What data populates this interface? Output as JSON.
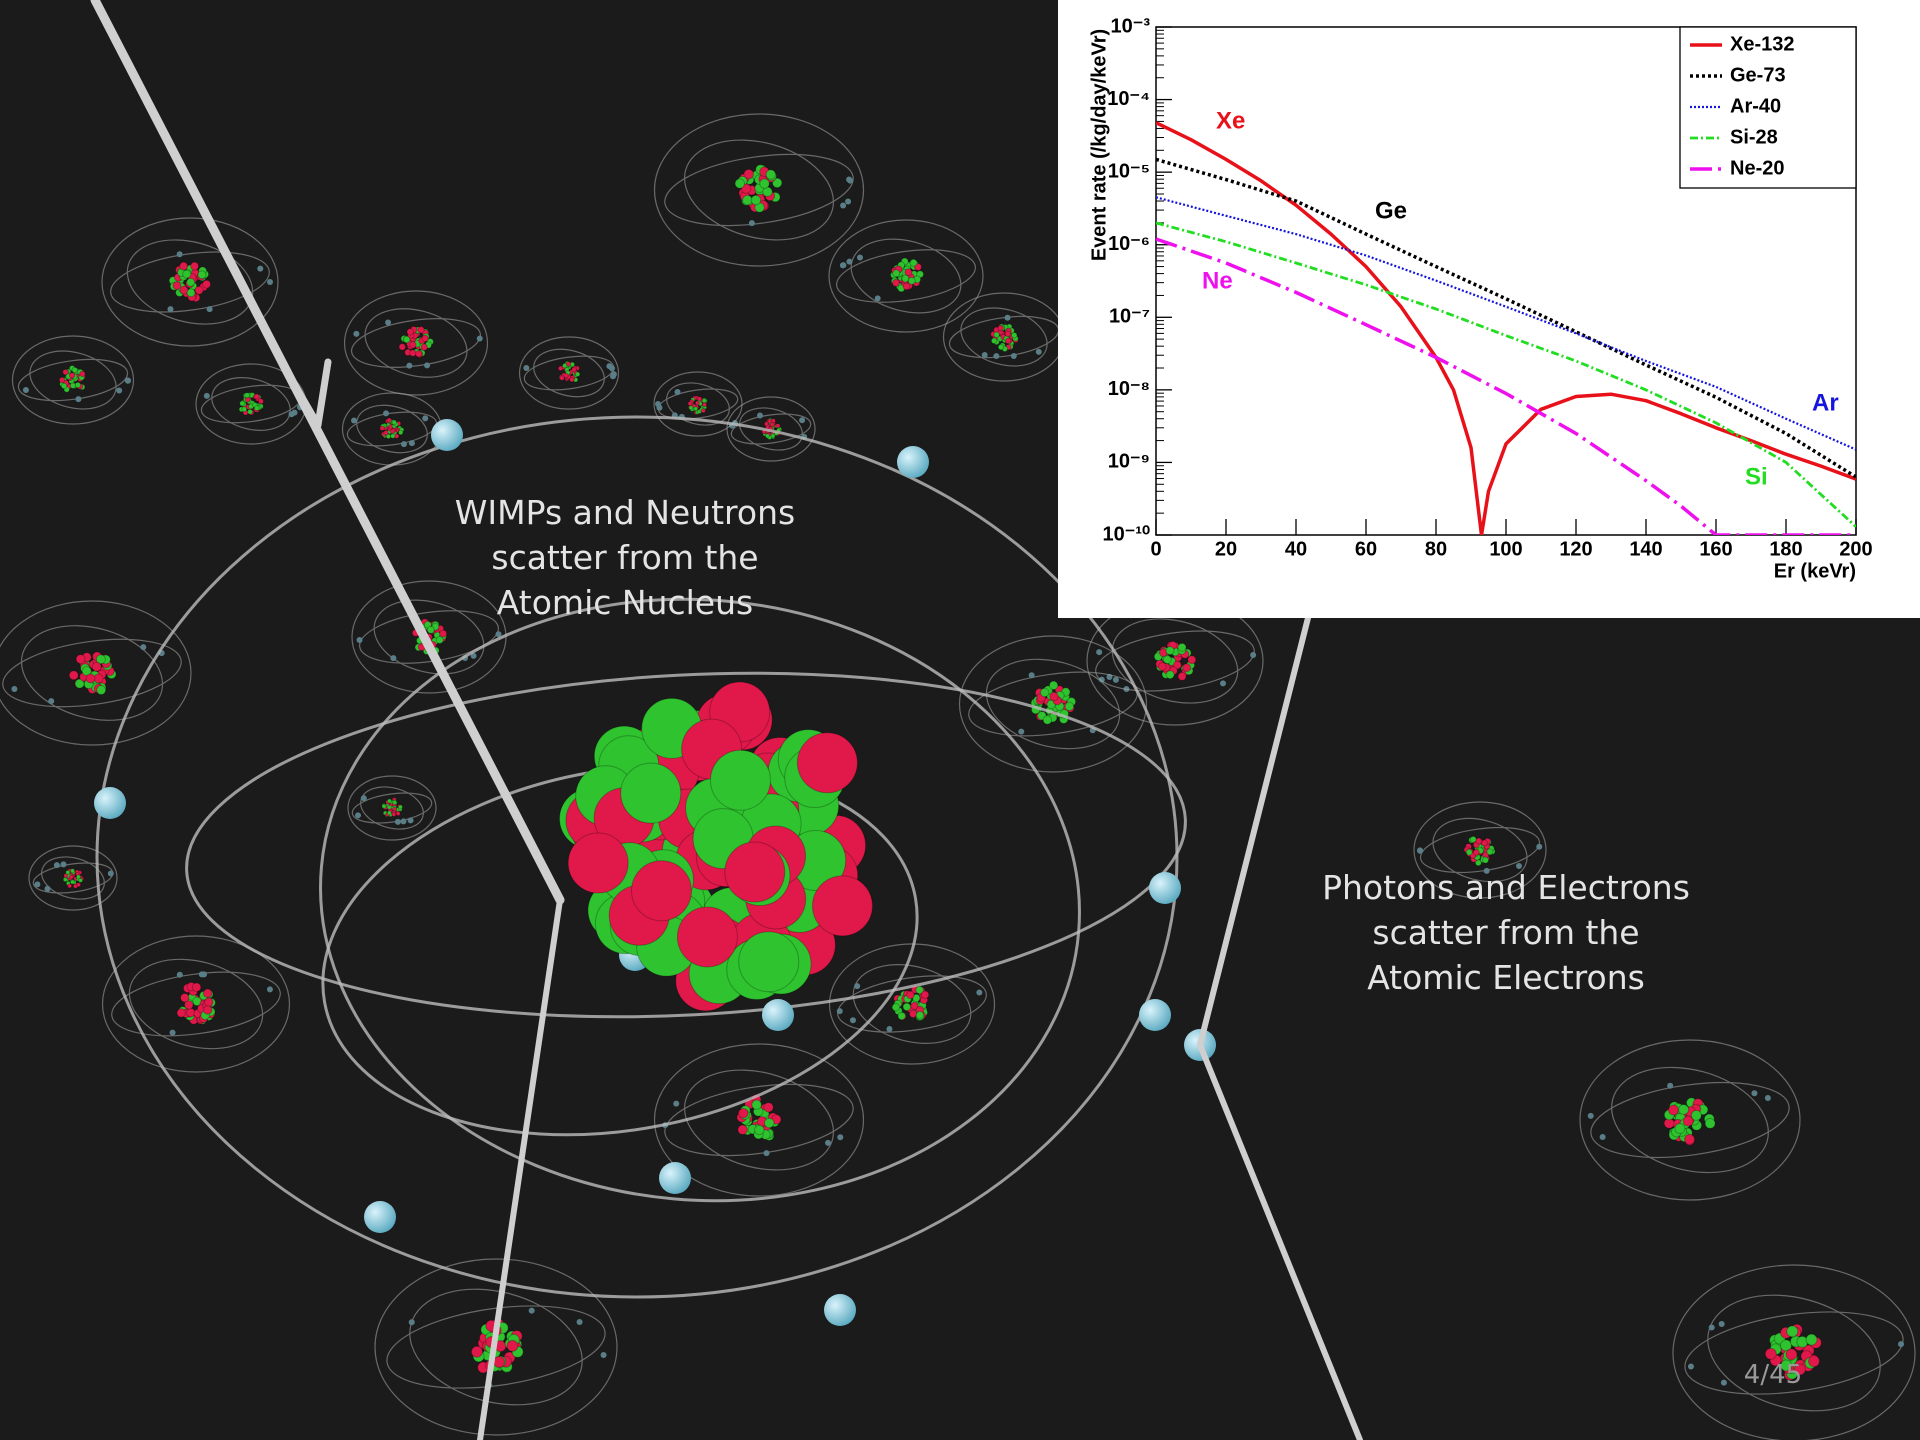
{
  "slide": {
    "captions": [
      [
        "WIMPs and Neutrons",
        "scatter from the",
        "Atomic Nucleus"
      ],
      [
        "Photons and Electrons",
        "scatter from the",
        "Atomic Electrons"
      ]
    ],
    "page_number": "4/45"
  },
  "chart_data": {
    "type": "line",
    "y_label": "Event rate (/kg/day/keVr)",
    "x_label": "Er (keVr)",
    "xlim": [
      0,
      200
    ],
    "xticks": [
      0,
      20,
      40,
      60,
      80,
      100,
      120,
      140,
      160,
      180,
      200
    ],
    "ylim": [
      1e-10,
      0.001
    ],
    "y_log_scale": true,
    "grid": false,
    "legend_position": "top-right",
    "yticks": [
      {
        "value": 1e-10,
        "label": "10⁻¹⁰"
      },
      {
        "value": 1e-09,
        "label": "10⁻⁹"
      },
      {
        "value": 1e-08,
        "label": "10⁻⁸"
      },
      {
        "value": 1e-07,
        "label": "10⁻⁷"
      },
      {
        "value": 1e-06,
        "label": "10⁻⁶"
      },
      {
        "value": 1e-05,
        "label": "10⁻⁵"
      },
      {
        "value": 0.0001,
        "label": "10⁻⁴"
      },
      {
        "value": 0.001,
        "label": "10⁻³"
      }
    ],
    "series": [
      {
        "name": "Xe-132",
        "color": "#e8111a",
        "line_style": "solid",
        "x": [
          0,
          10,
          20,
          30,
          40,
          50,
          60,
          70,
          80,
          85,
          90,
          92,
          93,
          95,
          100,
          110,
          120,
          130,
          140,
          150,
          160,
          170,
          180,
          190,
          200
        ],
        "values": [
          4.8e-05,
          2.8e-05,
          1.5e-05,
          7.6e-06,
          3.5e-06,
          1.4e-06,
          5e-07,
          1.4e-07,
          2.8e-08,
          1e-08,
          1.6e-09,
          2.5e-10,
          1e-10,
          4e-10,
          1.8e-09,
          5.4e-09,
          8.1e-09,
          8.7e-09,
          7.1e-09,
          4.7e-09,
          3e-09,
          2e-09,
          1.3e-09,
          8.9e-10,
          5.9e-10
        ]
      },
      {
        "name": "Ge-73",
        "color": "#000000",
        "line_style": "dotted-thick",
        "x": [
          0,
          20,
          40,
          60,
          80,
          100,
          120,
          140,
          160,
          180,
          200
        ],
        "values": [
          1.5e-05,
          7.9e-06,
          4e-06,
          1.4e-06,
          5e-07,
          1.8e-07,
          6.3e-08,
          2.2e-08,
          7.9e-09,
          2.5e-09,
          6.3e-10
        ]
      },
      {
        "name": "Ar-40",
        "color": "#1515dd",
        "line_style": "dotted",
        "x": [
          0,
          20,
          40,
          60,
          80,
          100,
          120,
          140,
          160,
          180,
          200
        ],
        "values": [
          4.5e-06,
          2.5e-06,
          1.4e-06,
          7.1e-07,
          3.2e-07,
          1.4e-07,
          6e-08,
          2.5e-08,
          1.1e-08,
          4e-09,
          1.5e-09
        ]
      },
      {
        "name": "Si-28",
        "color": "#22dd22",
        "line_style": "dash-dot",
        "x": [
          0,
          20,
          40,
          60,
          80,
          100,
          120,
          140,
          160,
          180,
          200
        ],
        "values": [
          2e-06,
          1.1e-06,
          5.6e-07,
          2.8e-07,
          1.3e-07,
          5.6e-08,
          2.5e-08,
          1e-08,
          3.5e-09,
          1e-09,
          1.3e-10
        ]
      },
      {
        "name": "Ne-20",
        "color": "#ee11ee",
        "line_style": "long-dash-dot",
        "x": [
          0,
          20,
          40,
          60,
          80,
          100,
          120,
          140,
          150,
          160,
          180,
          200
        ],
        "values": [
          1.2e-06,
          5.6e-07,
          2.2e-07,
          7.9e-08,
          2.8e-08,
          8.9e-09,
          2.5e-09,
          5.6e-10,
          2.5e-10,
          1e-10,
          1e-10,
          1e-10
        ]
      }
    ],
    "annotations": [
      {
        "text": "Xe",
        "color": "#e8111a"
      },
      {
        "text": "Ge",
        "color": "#000000"
      },
      {
        "text": "Ar",
        "color": "#1515dd"
      },
      {
        "text": "Si",
        "color": "#22dd22"
      },
      {
        "text": "Ne",
        "color": "#ee11ee"
      }
    ]
  }
}
